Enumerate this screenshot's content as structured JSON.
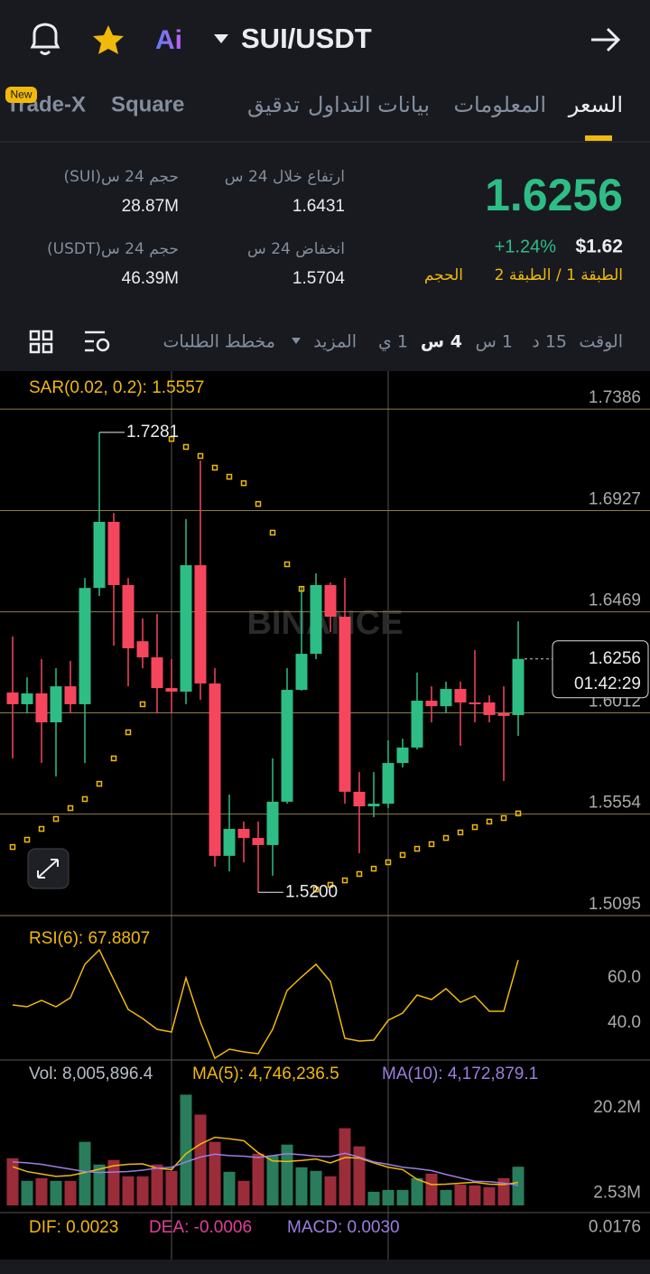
{
  "header": {
    "pair": "SUI/USDT"
  },
  "tabs": {
    "items": [
      "السعر",
      "المعلومات",
      "بيانات التداول",
      "تدقيق",
      "Square",
      "Trade-X"
    ],
    "badge": "New"
  },
  "ticker": {
    "price": "1.6256",
    "change": "+1.24%",
    "usd": "$1.62",
    "layer": "الطبقة 1 / الطبقة 2",
    "volume_link": "الحجم",
    "high_label": "ارتفاع خلال 24 س",
    "high": "1.6431",
    "low_label": "انخفاض 24 س",
    "low": "1.5704",
    "vol_sui_label": "حجم 24 س(SUI)",
    "vol_sui": "28.87M",
    "vol_usdt_label": "حجم 24 س(USDT)",
    "vol_usdt": "46.39M"
  },
  "toolbar": {
    "items": [
      "الوقت",
      "15 د",
      "1 س",
      "4 س",
      "1 ي",
      "المزيد",
      "مخطط الطلبات"
    ]
  },
  "watermark": "BINANCE",
  "chart_data": [
    {
      "type": "candlestick",
      "title": "SAR(0.02, 0.2): 1.5557",
      "up_color": "#2ebd85",
      "down_color": "#f6465d",
      "sar_color": "#f0b90b",
      "open": [
        1.6104,
        1.6051,
        1.61,
        1.5969,
        1.6132,
        1.6051,
        1.6577,
        1.6876,
        1.659,
        1.6336,
        1.6263,
        1.6124,
        1.6108,
        1.668,
        1.6145,
        1.5365,
        1.5487,
        1.5446,
        1.5414,
        1.561,
        1.6116,
        1.6279,
        1.659,
        1.6447,
        1.5655,
        1.5589,
        1.5601,
        1.5785,
        1.5855,
        1.6067,
        1.6042,
        1.612,
        1.6059,
        1.6059,
        1.601,
        1.6002
      ],
      "high": [
        1.6357,
        1.6173,
        1.6255,
        1.6214,
        1.6247,
        1.6622,
        1.7281,
        1.6916,
        1.6622,
        1.6439,
        1.6459,
        1.6255,
        1.6888,
        1.7153,
        1.6214,
        1.5642,
        1.552,
        1.552,
        1.5806,
        1.6214,
        1.6581,
        1.6643,
        1.6602,
        1.6622,
        1.5744,
        1.5744,
        1.5887,
        1.5895,
        1.6194,
        1.6132,
        1.6153,
        1.6153,
        1.6296,
        1.6091,
        1.6132,
        1.6426
      ],
      "low": [
        1.5806,
        1.601,
        1.5785,
        1.5724,
        1.601,
        1.5785,
        1.6541,
        1.6316,
        1.6132,
        1.6214,
        1.601,
        1.601,
        1.6051,
        1.6071,
        1.5316,
        1.5295,
        1.5336,
        1.52,
        1.5275,
        1.5601,
        1.6112,
        1.6255,
        1.6377,
        1.5601,
        1.5377,
        1.554,
        1.5581,
        1.5765,
        1.5846,
        1.5969,
        1.601,
        1.5863,
        1.5969,
        1.5969,
        1.5704,
        1.5908
      ],
      "close": [
        1.6051,
        1.61,
        1.5969,
        1.6132,
        1.6051,
        1.6577,
        1.6876,
        1.659,
        1.6304,
        1.6263,
        1.6124,
        1.6108,
        1.668,
        1.6145,
        1.5365,
        1.5487,
        1.5446,
        1.5414,
        1.561,
        1.6116,
        1.6279,
        1.659,
        1.6447,
        1.5655,
        1.5589,
        1.5601,
        1.5785,
        1.5855,
        1.6067,
        1.6042,
        1.612,
        1.6059,
        1.6051,
        1.6002,
        1.5998,
        1.6256
      ],
      "sar": [
        1.5405,
        1.5438,
        1.5487,
        1.5532,
        1.5581,
        1.5622,
        1.5691,
        1.5806,
        1.5924,
        1.6051,
        null,
        1.7251,
        1.7215,
        1.7174,
        1.7121,
        1.708,
        1.7051,
        1.6957,
        1.6827,
        1.6684,
        1.6573,
        1.5213,
        1.5234,
        1.5254,
        1.5283,
        1.5307,
        1.5336,
        1.5369,
        1.5397,
        1.5418,
        1.5446,
        1.5471,
        1.5495,
        1.552,
        1.5536,
        1.5557
      ],
      "annotations": [
        {
          "index": 6,
          "value": 1.7281,
          "label": "1.7281"
        },
        {
          "index": 17,
          "value": 1.52,
          "label": "1.5200"
        }
      ],
      "countdown": "01:42:29",
      "ylim": [
        1.5095,
        1.7558
      ],
      "yticks": [
        1.7386,
        1.6927,
        1.6469,
        1.6012,
        1.5554,
        1.5095
      ],
      "grid": true
    },
    {
      "type": "line",
      "title": "RSI(6): 67.8807",
      "color": "#f0b90b",
      "values": [
        48,
        47.2,
        50,
        47.2,
        51.2,
        66,
        72.4,
        59.2,
        46,
        42,
        37.2,
        36,
        60,
        40.4,
        24.4,
        28.4,
        27.2,
        26.4,
        37.2,
        54.4,
        60.4,
        66,
        58.4,
        33.2,
        32,
        32.4,
        41.2,
        44.4,
        52.4,
        50.4,
        55.2,
        49.2,
        52,
        45.2,
        45.2,
        67.8807
      ],
      "ylim": [
        23.6,
        87.6
      ],
      "yticks": [
        {
          "value": 60,
          "label": "60.0"
        },
        {
          "value": 40,
          "label": "40.0"
        }
      ]
    },
    {
      "type": "bar",
      "up_color": "#2a7d5c",
      "down_color": "#9b2c3a",
      "series": [
        {
          "name": "Vol: 8,005,896.4",
          "color": "#b7bdc6",
          "values": [
            9770000,
            5080000,
            5640000,
            5080000,
            5080000,
            13160000,
            8460000,
            9400000,
            6020000,
            6020000,
            8460000,
            7140000,
            22930000,
            18800000,
            13160000,
            6950000,
            5080000,
            10710000,
            10340000,
            12590000,
            7890000,
            7140000,
            6020000,
            15980000,
            12220000,
            2820000,
            3200000,
            3200000,
            5640000,
            6580000,
            3200000,
            4320000,
            4140000,
            3760000,
            5640000,
            8005896.4
          ]
        },
        {
          "name": "MA(5): 4,746,236.5",
          "color": "#f0b90b",
          "values": [
            8000000,
            7000000,
            6500000,
            6000000,
            6200000,
            6800000,
            7500000,
            8200000,
            8500000,
            8600000,
            7700000,
            7400000,
            10700000,
            12700000,
            14100000,
            13800000,
            13400000,
            10900000,
            9200000,
            9100000,
            9300000,
            9600000,
            8800000,
            9900000,
            9800000,
            8800000,
            7900000,
            7400000,
            5400000,
            4300000,
            4400000,
            4600000,
            4800000,
            4400000,
            4300000,
            4746236.5
          ]
        },
        {
          "name": "MA(10): 4,172,879.1",
          "color": "#9c7ee0",
          "values": [
            9000000,
            8800000,
            8500000,
            8000000,
            7500000,
            7000000,
            6800000,
            6900000,
            7000000,
            7300000,
            7700000,
            7900000,
            9000000,
            10000000,
            10600000,
            10300000,
            10200000,
            9900000,
            10300000,
            10700000,
            10500000,
            10200000,
            10100000,
            10800000,
            10000000,
            9000000,
            8500000,
            7900000,
            7600000,
            7200000,
            6400000,
            5700000,
            5000000,
            4900000,
            4600000,
            4172879.1
          ]
        }
      ],
      "ylim": [
        0,
        30100000
      ],
      "yticks": [
        {
          "value": 20200000,
          "label": "20.2M"
        },
        {
          "value": 2530000,
          "label": "2.53M"
        }
      ]
    },
    {
      "type": "macd",
      "series": [
        {
          "name": "DIF: 0.0023",
          "color": "#f0b90b"
        },
        {
          "name": "DEA: -0.0006",
          "color": "#e0409a"
        },
        {
          "name": "MACD: 0.0030",
          "color": "#9c7ee0"
        }
      ],
      "ylim": [
        0,
        0.0256
      ],
      "yticks": [
        0.0176
      ]
    }
  ]
}
